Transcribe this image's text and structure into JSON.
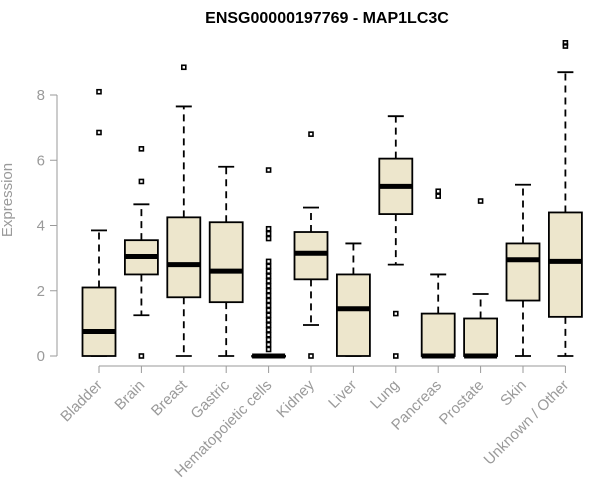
{
  "chart_data": {
    "type": "boxplot",
    "title": "ENSG00000197769 - MAP1LC3C",
    "xlabel": "",
    "ylabel": "Expression",
    "ylim": [
      0,
      9.6
    ],
    "yticks": [
      0,
      2,
      4,
      6,
      8
    ],
    "grid": false,
    "box_color": "#ede6cc",
    "categories": [
      "Bladder",
      "Brain",
      "Breast",
      "Gastric",
      "Hematopoietic cells",
      "Kidney",
      "Liver",
      "Lung",
      "Pancreas",
      "Prostate",
      "Skin",
      "Unknown / Other"
    ],
    "boxes": [
      {
        "q1": 0.0,
        "median": 0.75,
        "q3": 2.1,
        "whisker_low": 0,
        "whisker_high": 3.85,
        "outliers": [
          6.85,
          8.1
        ]
      },
      {
        "q1": 2.5,
        "median": 3.05,
        "q3": 3.55,
        "whisker_low": 1.25,
        "whisker_high": 4.65,
        "outliers": [
          0.0,
          5.35,
          6.35
        ]
      },
      {
        "q1": 1.8,
        "median": 2.8,
        "q3": 4.25,
        "whisker_low": 0,
        "whisker_high": 7.65,
        "outliers": [
          8.85
        ]
      },
      {
        "q1": 1.65,
        "median": 2.6,
        "q3": 4.1,
        "whisker_low": 0,
        "whisker_high": 5.8,
        "outliers": []
      },
      {
        "q1": 0.0,
        "median": 0.0,
        "q3": 0.0,
        "whisker_low": 0,
        "whisker_high": 0.0,
        "outliers": [
          0.2,
          0.35,
          0.5,
          0.65,
          0.8,
          0.95,
          1.1,
          1.25,
          1.4,
          1.55,
          1.7,
          1.85,
          2.0,
          2.15,
          2.3,
          2.45,
          2.6,
          2.75,
          2.9,
          3.6,
          3.75,
          3.9,
          5.7
        ]
      },
      {
        "q1": 2.35,
        "median": 3.15,
        "q3": 3.8,
        "whisker_low": 0.95,
        "whisker_high": 4.55,
        "outliers": [
          0.0,
          6.8
        ]
      },
      {
        "q1": 0.0,
        "median": 1.45,
        "q3": 2.5,
        "whisker_low": 0,
        "whisker_high": 3.45,
        "outliers": []
      },
      {
        "q1": 4.35,
        "median": 5.2,
        "q3": 6.05,
        "whisker_low": 2.8,
        "whisker_high": 7.35,
        "outliers": [
          0.0,
          1.3
        ]
      },
      {
        "q1": 0.0,
        "median": 0.0,
        "q3": 1.3,
        "whisker_low": 0,
        "whisker_high": 2.5,
        "outliers": [
          4.9,
          5.05
        ]
      },
      {
        "q1": 0.0,
        "median": 0.0,
        "q3": 1.15,
        "whisker_low": 0,
        "whisker_high": 1.9,
        "outliers": [
          4.75
        ]
      },
      {
        "q1": 1.7,
        "median": 2.95,
        "q3": 3.45,
        "whisker_low": 0,
        "whisker_high": 5.25,
        "outliers": []
      },
      {
        "q1": 1.2,
        "median": 2.9,
        "q3": 4.4,
        "whisker_low": 0,
        "whisker_high": 8.7,
        "outliers": [
          9.5,
          9.6
        ]
      }
    ]
  }
}
